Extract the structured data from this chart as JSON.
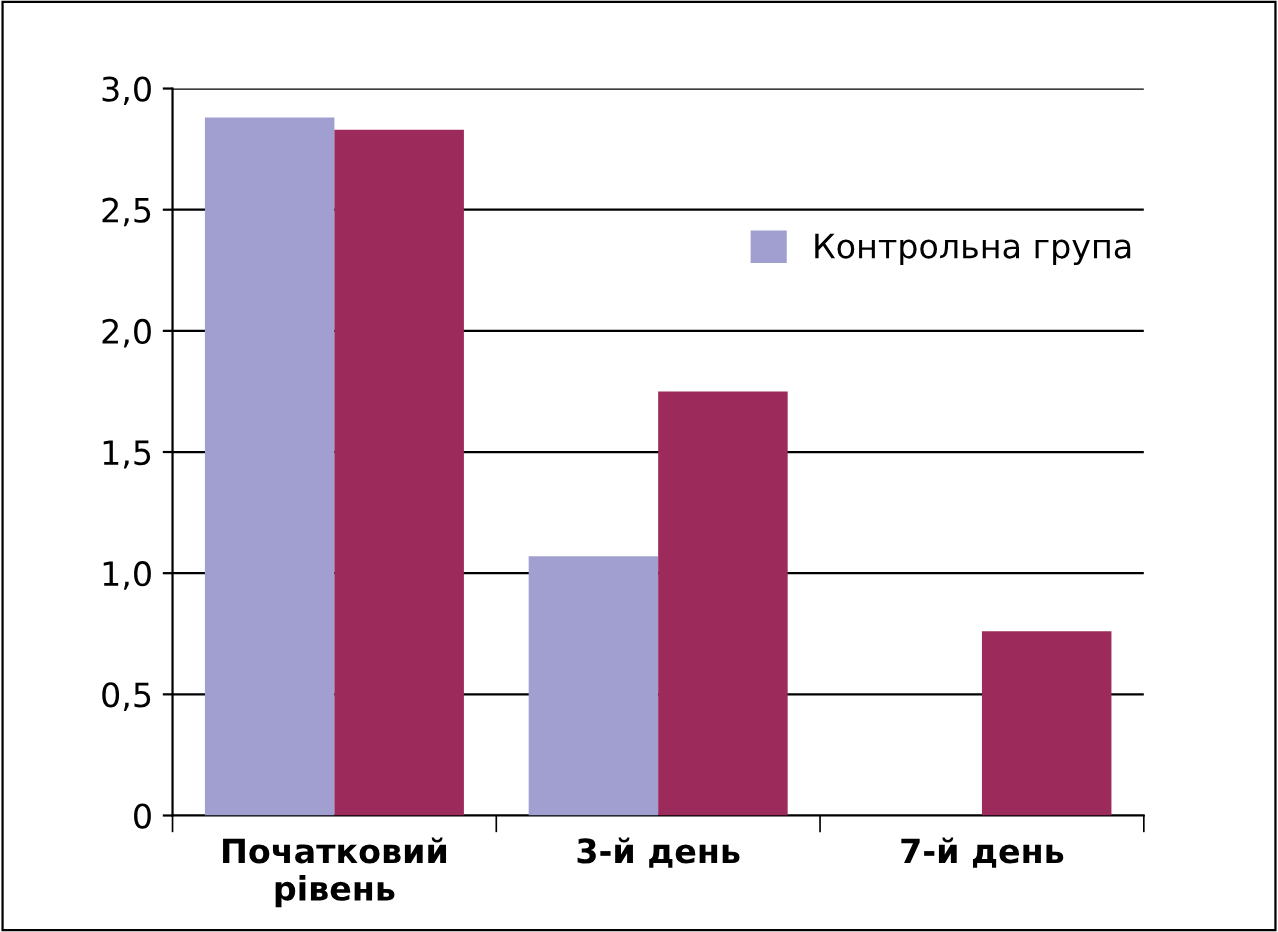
{
  "chart_data": {
    "type": "bar",
    "categories": [
      "Початковий\nрівень",
      "3-й день",
      "7-й день"
    ],
    "series": [
      {
        "name": "Контрольна група",
        "color": "#a09fd0",
        "values": [
          2.88,
          1.07,
          null
        ]
      },
      {
        "color": "#9c2a5a",
        "values": [
          2.83,
          1.75,
          0.76
        ]
      }
    ],
    "ylim": [
      0,
      3
    ],
    "yticks": [
      0,
      {
        "value": 0.5,
        "label": "0,5"
      },
      {
        "value": 1,
        "label": "1,0"
      },
      {
        "value": 1.5,
        "label": "1,5"
      },
      {
        "value": 2,
        "label": "2,0"
      },
      {
        "value": 2.5,
        "label": "2,5"
      },
      {
        "value": 3,
        "label": "3,0"
      }
    ],
    "grid": "y",
    "legend": "right"
  }
}
